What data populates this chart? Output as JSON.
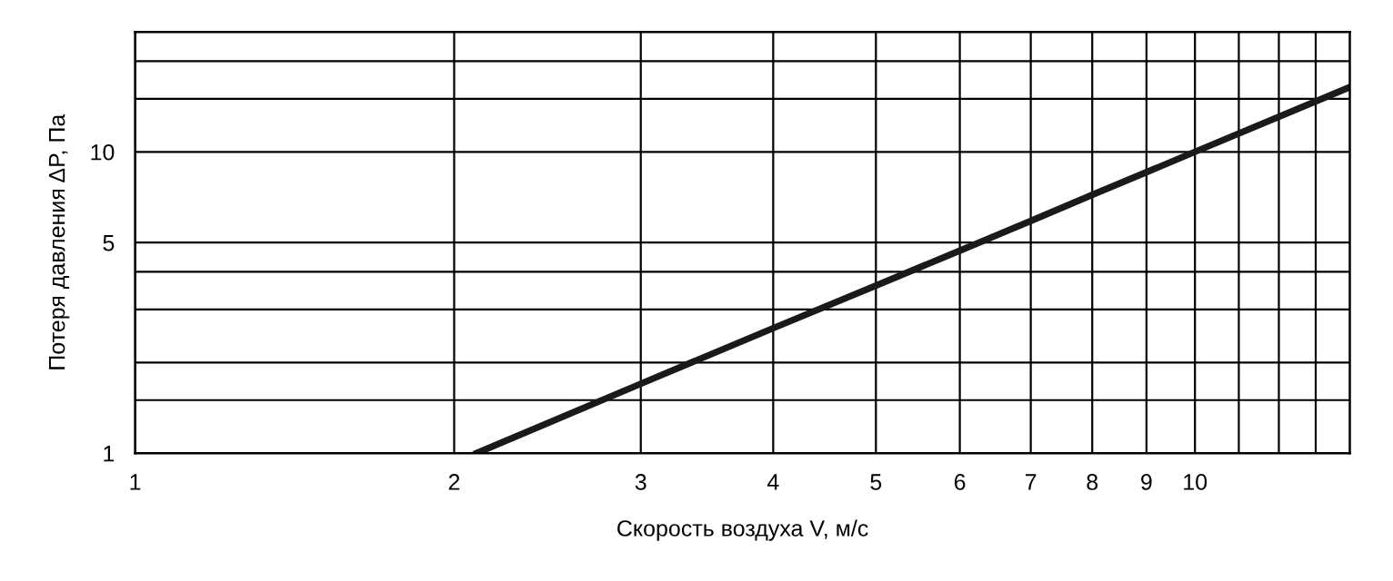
{
  "chart_data": {
    "type": "line",
    "xlabel": "Скорость воздуха V, м/с",
    "ylabel": "Потеря давления ΔP, Па",
    "log": "xy",
    "grid": true,
    "marker": "none",
    "line_style": "solid",
    "xlim": [
      1,
      14
    ],
    "ylim": [
      1,
      25
    ],
    "xticks": [
      1,
      2,
      3,
      4,
      5,
      6,
      7,
      8,
      9,
      10,
      {
        "value": 11,
        "label": null
      },
      {
        "value": 12,
        "label": null
      },
      {
        "value": 13,
        "label": null
      }
    ],
    "yticks": [
      1,
      {
        "value": 1.5,
        "label": null
      },
      {
        "value": 2,
        "label": null
      },
      {
        "value": 3,
        "label": null
      },
      {
        "value": 4,
        "label": null
      },
      5,
      10,
      {
        "value": 15,
        "label": null
      },
      {
        "value": 20,
        "label": null
      }
    ],
    "series": [
      {
        "color": "#1a1a1a",
        "x": [
          2.1,
          3,
          4,
          5,
          6,
          7,
          8,
          10,
          14
        ],
        "values": [
          1,
          1.7,
          2.6,
          3.6,
          4.7,
          5.9,
          7.2,
          10,
          16.4
        ]
      }
    ]
  }
}
